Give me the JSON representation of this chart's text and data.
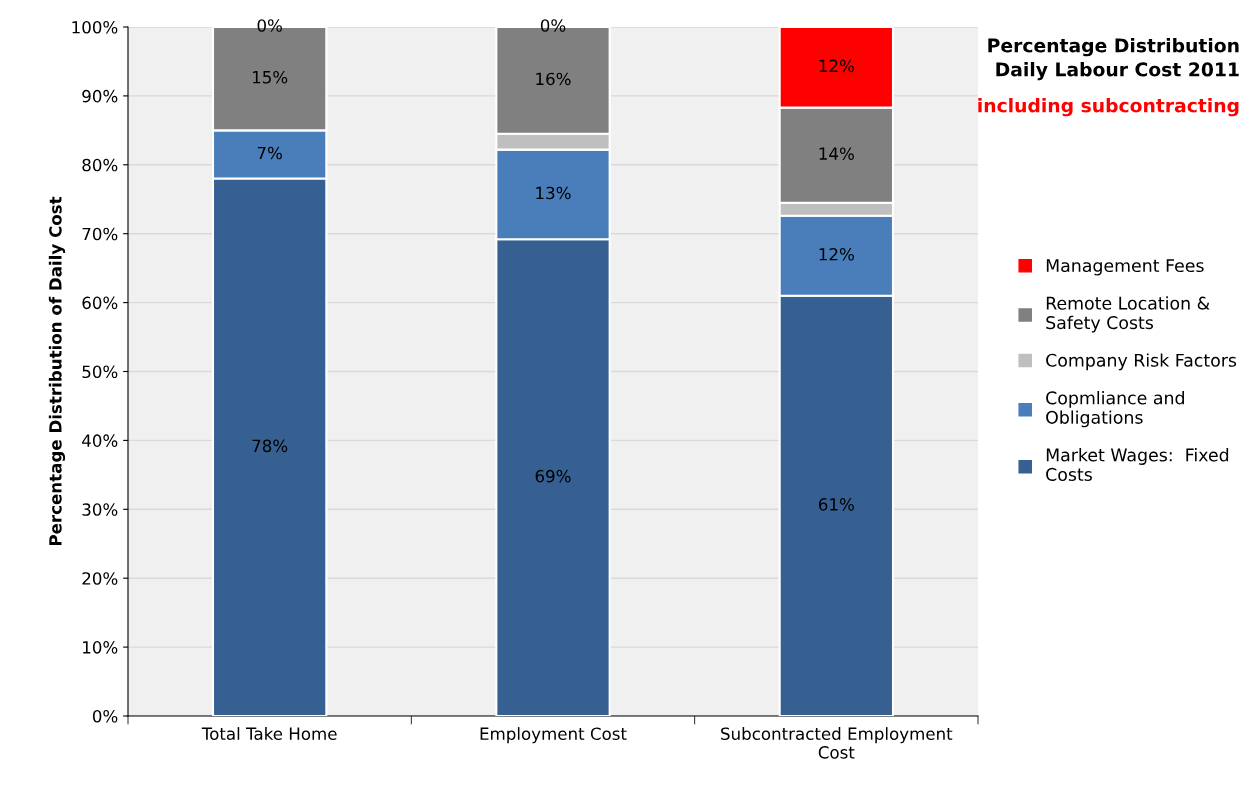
{
  "chart_data": {
    "type": "bar",
    "title": "Percentage Distribution\nDaily Labour Cost 2011",
    "subtitle": "including subcontracting",
    "ylabel": "Percentage Distribution of Daily Cost",
    "categories": [
      "Total Take Home",
      "Employment Cost",
      "Subcontracted Employment Cost"
    ],
    "stacked": true,
    "ylim": [
      0,
      100
    ],
    "yticks": [
      {
        "value": 0,
        "label": "0%"
      },
      {
        "value": 10,
        "label": "10%"
      },
      {
        "value": 20,
        "label": "20%"
      },
      {
        "value": 30,
        "label": "30%"
      },
      {
        "value": 40,
        "label": "40%"
      },
      {
        "value": 50,
        "label": "50%"
      },
      {
        "value": 60,
        "label": "60%"
      },
      {
        "value": 70,
        "label": "70%"
      },
      {
        "value": 80,
        "label": "80%"
      },
      {
        "value": 90,
        "label": "90%"
      },
      {
        "value": 100,
        "label": "100%"
      }
    ],
    "grid": "y",
    "legend": "right",
    "series": [
      {
        "name": "Market Wages:  Fixed Costs",
        "color": "#376092",
        "values": [
          78,
          69.2,
          61
        ],
        "value_labels": [
          "78%",
          "69%",
          "61%"
        ]
      },
      {
        "name": "Copmliance and Obligations",
        "color": "#4a7ebb",
        "values": [
          7,
          13,
          11.6
        ],
        "value_labels": [
          "7%",
          "13%",
          "12%"
        ]
      },
      {
        "name": "Company Risk Factors",
        "color": "#bfbfbf",
        "values": [
          0,
          2.3,
          1.9
        ],
        "value_labels": [
          null,
          null,
          null
        ]
      },
      {
        "name": "Remote Location & Safety Costs",
        "color": "#808080",
        "values": [
          15,
          15.5,
          13.8
        ],
        "value_labels": [
          "15%",
          "16%",
          "14%"
        ]
      },
      {
        "name": "Management Fees",
        "color": "#ff0000",
        "values": [
          0,
          0,
          11.7
        ],
        "value_labels": [
          "0%",
          "0%",
          "12%"
        ]
      }
    ]
  }
}
